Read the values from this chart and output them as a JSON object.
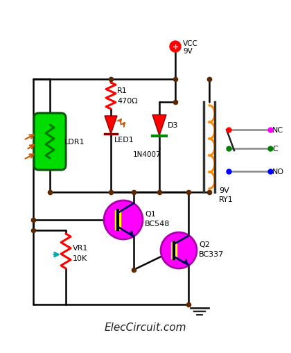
{
  "bg_color": "#ffffff",
  "wire_color": "#000000",
  "node_dot": "#5c2800",
  "title_text": "ElecCircuit.com",
  "vcc_text": "VCC",
  "vcc_v": "9V",
  "r1_label": "R1",
  "r1_val": "470Ω",
  "led1_label": "LED1",
  "d3_label": "D3",
  "d3_val": "1N4007",
  "q1_label": "Q1",
  "q1_val": "BC548",
  "q2_label": "Q2",
  "q2_val": "BC337",
  "vr1_label": "VR1",
  "vr1_val": "10K",
  "ldr1_label": "LDR1",
  "ry1_label": "RY1",
  "ry1_val": "9V",
  "nc_label": "NC",
  "c_label": "C",
  "no_label": "NO",
  "resistor_color": "#ff0000",
  "vr1_color": "#ff0000",
  "ldr_fill": "#00dd00",
  "ldr_zz": "#007700",
  "transistor_fill": "#ff00ff",
  "transistor_border": "#aa00aa",
  "transistor_body": "#ffff00",
  "relay_coil_color": "#ff8800",
  "diode_color": "#ff0000",
  "led_color": "#ff0000",
  "node_color": "#5c2800",
  "gray_wire": "#888888",
  "dark": "#222222"
}
